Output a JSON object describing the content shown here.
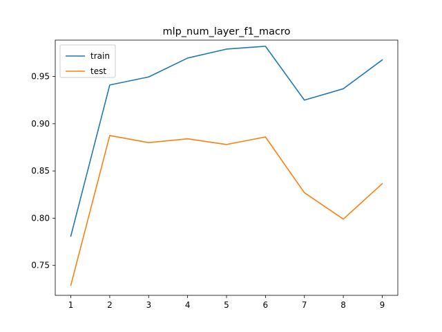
{
  "chart_data": {
    "type": "line",
    "title": "mlp_num_layer_f1_macro",
    "xlabel": "",
    "ylabel": "",
    "x": [
      1,
      2,
      3,
      4,
      5,
      6,
      7,
      8,
      9
    ],
    "xlim": [
      0.6,
      9.4
    ],
    "ylim": [
      0.7183,
      0.9885
    ],
    "yticks": [
      0.75,
      0.8,
      0.85,
      0.9,
      0.95
    ],
    "ytick_labels": [
      "0.75",
      "0.80",
      "0.85",
      "0.90",
      "0.95"
    ],
    "xticks": [
      1,
      2,
      3,
      4,
      5,
      6,
      7,
      8,
      9
    ],
    "xtick_labels": [
      "1",
      "2",
      "3",
      "4",
      "5",
      "6",
      "7",
      "8",
      "9"
    ],
    "grid": false,
    "legend_position": "top-left",
    "series": [
      {
        "name": "train",
        "color": "#1f77b4",
        "values": [
          0.781,
          0.941,
          0.9495,
          0.9695,
          0.979,
          0.982,
          0.925,
          0.937,
          0.9675
        ]
      },
      {
        "name": "test",
        "color": "#ff7f0e",
        "values": [
          0.729,
          0.8875,
          0.88,
          0.884,
          0.878,
          0.886,
          0.827,
          0.799,
          0.8365
        ]
      }
    ]
  }
}
